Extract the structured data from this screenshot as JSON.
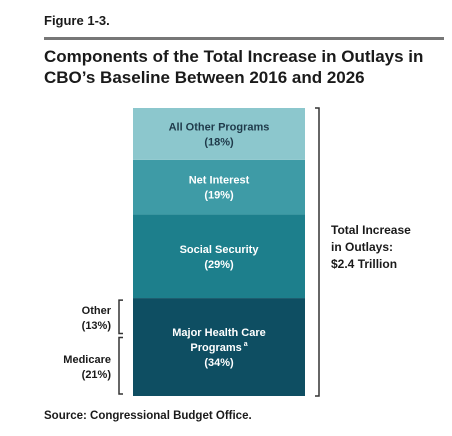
{
  "figure_label": "Figure 1-3.",
  "title": "Components of the Total Increase in Outlays in CBO’s Baseline Between 2016 and 2026",
  "source": "Source: Congressional Budget Office.",
  "chart_data": {
    "type": "bar",
    "subtype": "stacked-100",
    "title": "Components of the Total Increase in Outlays in CBO’s Baseline Between 2016 and 2026",
    "total": {
      "label_lines": [
        "Total Increase",
        "in Outlays:",
        "$2.4 Trillion"
      ],
      "value_trillions": 2.4
    },
    "segments": [
      {
        "name": "Major Health Care Programs",
        "label_lines": [
          "Major Health Care",
          "Programs"
        ],
        "footnote": "a",
        "percent_text": "(34%)",
        "value": 34,
        "color": "#0e4e62"
      },
      {
        "name": "Social Security",
        "label_lines": [
          "Social Security"
        ],
        "percent_text": "(29%)",
        "value": 29,
        "color": "#1d7f8c"
      },
      {
        "name": "Net Interest",
        "label_lines": [
          "Net Interest"
        ],
        "percent_text": "(19%)",
        "value": 19,
        "color": "#3e9ba6"
      },
      {
        "name": "All Other Programs",
        "label_lines": [
          "All Other Programs"
        ],
        "percent_text": "(18%)",
        "value": 18,
        "color": "#8cc7cd"
      }
    ],
    "breakdown": [
      {
        "name": "Other",
        "percent_text": "(13%)",
        "value": 13
      },
      {
        "name": "Medicare",
        "percent_text": "(21%)",
        "value": 21
      }
    ]
  }
}
